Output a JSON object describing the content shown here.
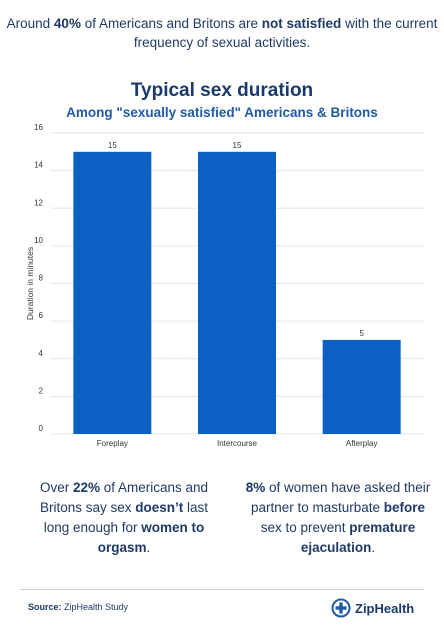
{
  "intro": {
    "p1": "Around ",
    "b1": "40%",
    "p2": " of Americans and Britons are ",
    "b2": "not satisfied",
    "p3": " with the current frequency of sexual activities."
  },
  "chart_data": {
    "type": "bar",
    "title": "Typical sex duration",
    "subtitle": "Among \"sexually satisfied\" Americans & Britons",
    "xlabel": "",
    "ylabel": "Duration in minutes",
    "categories": [
      "Foreplay",
      "Intercourse",
      "Afterplay"
    ],
    "values": [
      15,
      15,
      5
    ],
    "data_labels": [
      "15",
      "15",
      "5"
    ],
    "ylim": [
      0,
      16
    ],
    "yticks": [
      0,
      2,
      4,
      6,
      8,
      10,
      12,
      14,
      16
    ],
    "grid": true,
    "bar_color": "#0d60c3"
  },
  "facts": {
    "left": {
      "p1": "Over ",
      "b1": "22%",
      "p2": " of Americans and Britons say sex ",
      "b2": "doesn’t",
      "p3": " last long enough for ",
      "b3": "women to orgasm",
      "p4": "."
    },
    "right": {
      "b1": "8%",
      "p1": " of women have asked their partner to masturbate ",
      "b2": "before",
      "p2": " sex to prevent ",
      "b3": "premature ejaculation",
      "p3": "."
    }
  },
  "footer": {
    "source_label": "Source:",
    "source_text": " ZipHealth Study",
    "logo_text": "ZipHealth",
    "logo_icon": "plus-circle-icon",
    "logo_color": "#1e5aa8"
  }
}
